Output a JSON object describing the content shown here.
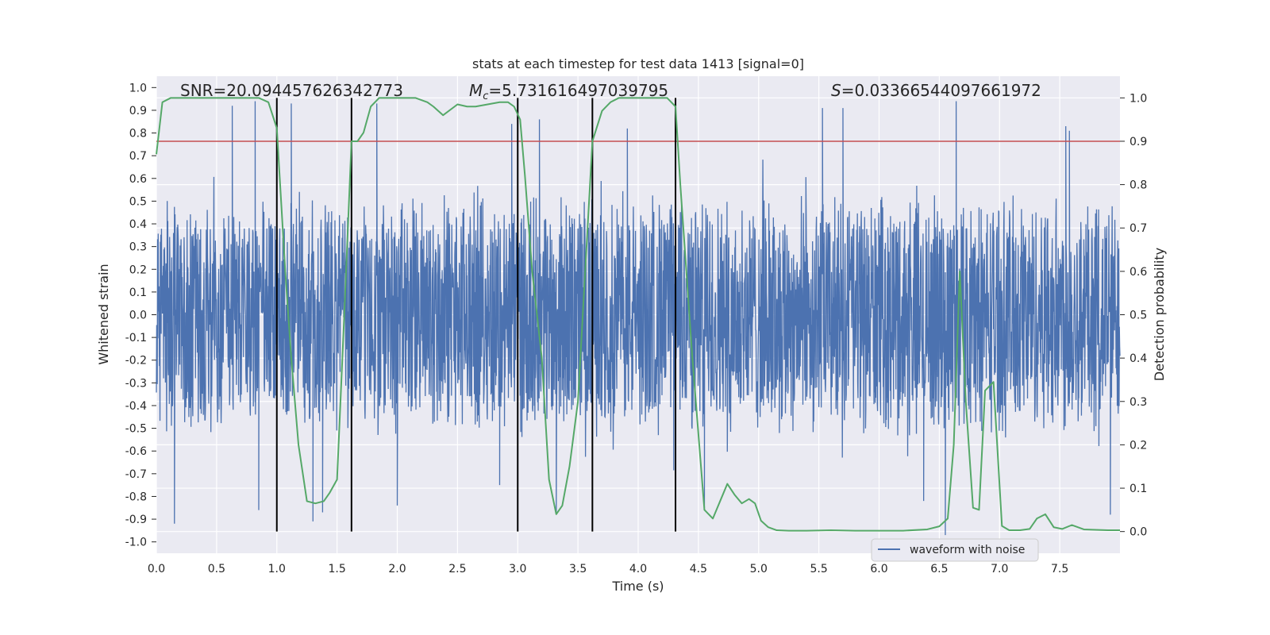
{
  "chart_data": {
    "type": "line",
    "title": "stats at each timestep for test data 1413 [signal=0]",
    "xlabel": "Time (s)",
    "ylabel_left": "Whitened strain",
    "ylabel_right": "Detection probability",
    "xlim": [
      0,
      8
    ],
    "ylim_left": [
      -1.05,
      1.05
    ],
    "ylim_right": [
      -0.05,
      1.05
    ],
    "x_ticks": [
      "0.0",
      "0.5",
      "1.0",
      "1.5",
      "2.0",
      "2.5",
      "3.0",
      "3.5",
      "4.0",
      "4.5",
      "5.0",
      "5.5",
      "6.0",
      "6.5",
      "7.0",
      "7.5"
    ],
    "x_tick_values": [
      0,
      0.5,
      1,
      1.5,
      2,
      2.5,
      3,
      3.5,
      4,
      4.5,
      5,
      5.5,
      6,
      6.5,
      7,
      7.5
    ],
    "y_left_ticks": [
      "1.0",
      "0.9",
      "0.8",
      "0.7",
      "0.6",
      "0.5",
      "0.4",
      "0.3",
      "0.2",
      "0.1",
      "0.0",
      "-0.1",
      "-0.2",
      "-0.3",
      "-0.4",
      "-0.5",
      "-0.6",
      "-0.7",
      "-0.8",
      "-0.9",
      "-1.0"
    ],
    "y_left_tick_values": [
      1.0,
      0.9,
      0.8,
      0.7,
      0.6,
      0.5,
      0.4,
      0.3,
      0.2,
      0.1,
      0.0,
      -0.1,
      -0.2,
      -0.3,
      -0.4,
      -0.5,
      -0.6,
      -0.7,
      -0.8,
      -0.9,
      -1.0
    ],
    "y_right_ticks": [
      "1.0",
      "0.9",
      "0.8",
      "0.7",
      "0.6",
      "0.5",
      "0.4",
      "0.3",
      "0.2",
      "0.1",
      "0.0"
    ],
    "y_right_tick_values": [
      1.0,
      0.9,
      0.8,
      0.7,
      0.6,
      0.5,
      0.4,
      0.3,
      0.2,
      0.1,
      0.0
    ],
    "annotations": {
      "snr": "SNR=20.094457626342773",
      "mc_symbol": "M",
      "mc_sub": "c",
      "mc_value": "=5.731616497039795",
      "s_symbol": "S",
      "s_value": "=0.03366544097661972"
    },
    "threshold": {
      "value": 0.9,
      "axis": "right",
      "color": "#c44e52"
    },
    "vertical_lines": [
      1.0,
      1.62,
      3.0,
      3.62,
      4.31
    ],
    "vertical_line_range": [
      0.0,
      1.0
    ],
    "waveform": {
      "name": "waveform with noise",
      "color": "#4c72b0",
      "amplitude_envelope": 0.5,
      "peak_spikes": [
        [
          0.63,
          0.92
        ],
        [
          0.82,
          0.94
        ],
        [
          1.12,
          0.93
        ],
        [
          1.83,
          0.93
        ],
        [
          2.95,
          0.84
        ],
        [
          3.18,
          0.86
        ],
        [
          3.91,
          0.82
        ],
        [
          5.53,
          0.91
        ],
        [
          5.7,
          0.91
        ],
        [
          6.64,
          0.94
        ],
        [
          7.55,
          0.83
        ],
        [
          7.58,
          0.81
        ]
      ],
      "trough_spikes": [
        [
          0.15,
          -0.92
        ],
        [
          0.85,
          -0.86
        ],
        [
          1.3,
          -0.91
        ],
        [
          1.38,
          -0.87
        ],
        [
          2.0,
          -0.84
        ],
        [
          2.85,
          -0.75
        ],
        [
          3.32,
          -0.87
        ],
        [
          4.55,
          -0.85
        ],
        [
          6.37,
          -0.82
        ],
        [
          6.55,
          -0.97
        ],
        [
          7.92,
          -0.88
        ]
      ]
    },
    "detection_probability": {
      "color": "#55a868",
      "axis": "right",
      "x": [
        0.0,
        0.05,
        0.12,
        0.3,
        0.5,
        0.7,
        0.85,
        0.93,
        1.0,
        1.07,
        1.12,
        1.18,
        1.25,
        1.32,
        1.39,
        1.44,
        1.5,
        1.56,
        1.62,
        1.67,
        1.72,
        1.78,
        1.85,
        2.0,
        2.15,
        2.25,
        2.3,
        2.38,
        2.5,
        2.58,
        2.65,
        2.75,
        2.85,
        2.92,
        2.97,
        3.02,
        3.06,
        3.12,
        3.2,
        3.26,
        3.32,
        3.37,
        3.43,
        3.5,
        3.56,
        3.62,
        3.7,
        3.77,
        3.84,
        3.92,
        4.0,
        4.15,
        4.24,
        4.31,
        4.35,
        4.45,
        4.55,
        4.62,
        4.68,
        4.74,
        4.8,
        4.86,
        4.92,
        4.97,
        5.02,
        5.08,
        5.15,
        5.25,
        5.4,
        5.6,
        5.8,
        6.2,
        6.4,
        6.5,
        6.57,
        6.62,
        6.67,
        6.72,
        6.78,
        6.83,
        6.88,
        6.95,
        7.02,
        7.08,
        7.17,
        7.25,
        7.31,
        7.38,
        7.45,
        7.52,
        7.6,
        7.7,
        7.8,
        7.9,
        8.0
      ],
      "y": [
        0.87,
        0.99,
        1.0,
        1.0,
        1.0,
        1.0,
        1.0,
        0.99,
        0.93,
        0.6,
        0.4,
        0.2,
        0.07,
        0.065,
        0.07,
        0.09,
        0.12,
        0.5,
        0.9,
        0.9,
        0.92,
        0.98,
        1.0,
        1.0,
        1.0,
        0.99,
        0.98,
        0.96,
        0.985,
        0.98,
        0.98,
        0.985,
        0.99,
        0.99,
        0.98,
        0.95,
        0.82,
        0.6,
        0.4,
        0.12,
        0.04,
        0.06,
        0.15,
        0.3,
        0.6,
        0.9,
        0.97,
        0.99,
        1.0,
        1.0,
        1.0,
        1.0,
        1.0,
        0.98,
        0.8,
        0.4,
        0.05,
        0.03,
        0.07,
        0.11,
        0.085,
        0.065,
        0.075,
        0.065,
        0.025,
        0.01,
        0.003,
        0.002,
        0.002,
        0.003,
        0.002,
        0.002,
        0.005,
        0.012,
        0.03,
        0.2,
        0.6,
        0.3,
        0.055,
        0.05,
        0.325,
        0.345,
        0.013,
        0.003,
        0.003,
        0.006,
        0.03,
        0.04,
        0.01,
        0.006,
        0.015,
        0.005,
        0.004,
        0.003,
        0.003
      ]
    },
    "legend": {
      "position": "lower-right",
      "entries": [
        "waveform with noise"
      ]
    },
    "grid": true
  }
}
